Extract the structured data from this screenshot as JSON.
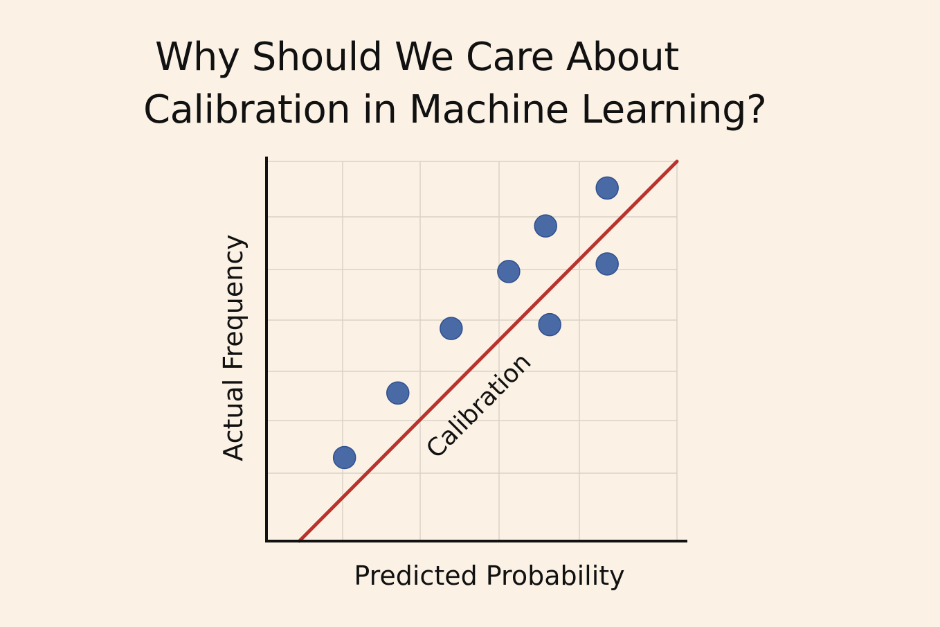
{
  "title_lines": [
    "Why Should We Care About",
    "Calibration in Machine Learning?"
  ],
  "chart_data": {
    "type": "scatter",
    "title": "Why Should We Care About Calibration in Machine Learning?",
    "xlabel": "Predicted Probability",
    "ylabel": "Actual Frequency",
    "xlim": [
      0,
      1
    ],
    "ylim": [
      0,
      1
    ],
    "grid": true,
    "tick_labels_shown": false,
    "points": [
      {
        "x": 0.19,
        "y": 0.22
      },
      {
        "x": 0.32,
        "y": 0.39
      },
      {
        "x": 0.45,
        "y": 0.56
      },
      {
        "x": 0.59,
        "y": 0.71
      },
      {
        "x": 0.68,
        "y": 0.83
      },
      {
        "x": 0.69,
        "y": 0.57
      },
      {
        "x": 0.83,
        "y": 0.93
      },
      {
        "x": 0.83,
        "y": 0.73
      }
    ],
    "reference_line": {
      "label": "Calibration",
      "from": [
        0.08,
        0.0
      ],
      "to": [
        1.0,
        1.0
      ]
    },
    "colors": {
      "points": "#4a6aa5",
      "point_edge": "#2f4f8f",
      "line": "#b8332e",
      "grid": "#d9d2c7",
      "axes": "#111111",
      "background": "#fbf2e5"
    }
  }
}
